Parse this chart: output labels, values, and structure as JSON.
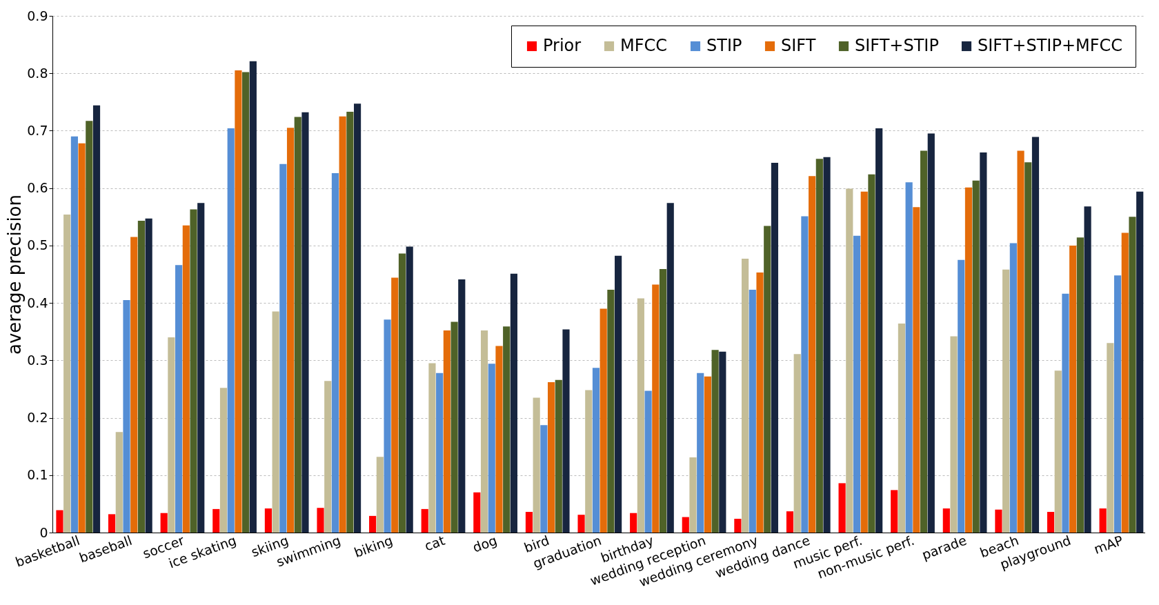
{
  "chart_data": {
    "type": "bar",
    "ylabel": "average precision",
    "categories": [
      "basketball",
      "baseball",
      "soccer",
      "ice skating",
      "skiing",
      "swimming",
      "biking",
      "cat",
      "dog",
      "bird",
      "graduation",
      "birthday",
      "wedding reception",
      "wedding ceremony",
      "wedding dance",
      "music perf.",
      "non-music perf.",
      "parade",
      "beach",
      "playground",
      "mAP"
    ],
    "series": [
      {
        "name": "Prior",
        "color": "#ff0000",
        "values": [
          0.039,
          0.032,
          0.034,
          0.041,
          0.042,
          0.043,
          0.029,
          0.041,
          0.07,
          0.036,
          0.031,
          0.034,
          0.027,
          0.024,
          0.037,
          0.086,
          0.074,
          0.042,
          0.04,
          0.036,
          0.042
        ]
      },
      {
        "name": "MFCC",
        "color": "#c4bd97",
        "values": [
          0.554,
          0.175,
          0.34,
          0.252,
          0.385,
          0.264,
          0.132,
          0.295,
          0.352,
          0.235,
          0.248,
          0.408,
          0.131,
          0.477,
          0.311,
          0.599,
          0.364,
          0.342,
          0.458,
          0.282,
          0.33
        ]
      },
      {
        "name": "STIP",
        "color": "#558ed5",
        "values": [
          0.69,
          0.405,
          0.466,
          0.704,
          0.642,
          0.626,
          0.371,
          0.278,
          0.294,
          0.187,
          0.287,
          0.247,
          0.278,
          0.423,
          0.551,
          0.517,
          0.61,
          0.475,
          0.504,
          0.416,
          0.448
        ]
      },
      {
        "name": "SIFT",
        "color": "#e46c0a",
        "values": [
          0.678,
          0.515,
          0.535,
          0.805,
          0.705,
          0.725,
          0.444,
          0.352,
          0.325,
          0.262,
          0.39,
          0.432,
          0.272,
          0.453,
          0.621,
          0.594,
          0.567,
          0.601,
          0.665,
          0.5,
          0.522
        ]
      },
      {
        "name": "SIFT+STIP",
        "color": "#4f6228",
        "values": [
          0.717,
          0.543,
          0.563,
          0.802,
          0.724,
          0.733,
          0.486,
          0.367,
          0.359,
          0.266,
          0.423,
          0.459,
          0.318,
          0.534,
          0.651,
          0.624,
          0.665,
          0.613,
          0.645,
          0.514,
          0.55
        ]
      },
      {
        "name": "SIFT+STIP+MFCC",
        "color": "#17253f",
        "values": [
          0.744,
          0.547,
          0.574,
          0.821,
          0.732,
          0.747,
          0.498,
          0.441,
          0.451,
          0.354,
          0.482,
          0.574,
          0.315,
          0.644,
          0.654,
          0.704,
          0.695,
          0.662,
          0.689,
          0.568,
          0.594
        ]
      }
    ],
    "ylim": [
      0,
      0.9
    ],
    "yticks": [
      0,
      0.1,
      0.2,
      0.3,
      0.4,
      0.5,
      0.6,
      0.7,
      0.8,
      0.9
    ],
    "grid": "y",
    "legend": "top right"
  }
}
